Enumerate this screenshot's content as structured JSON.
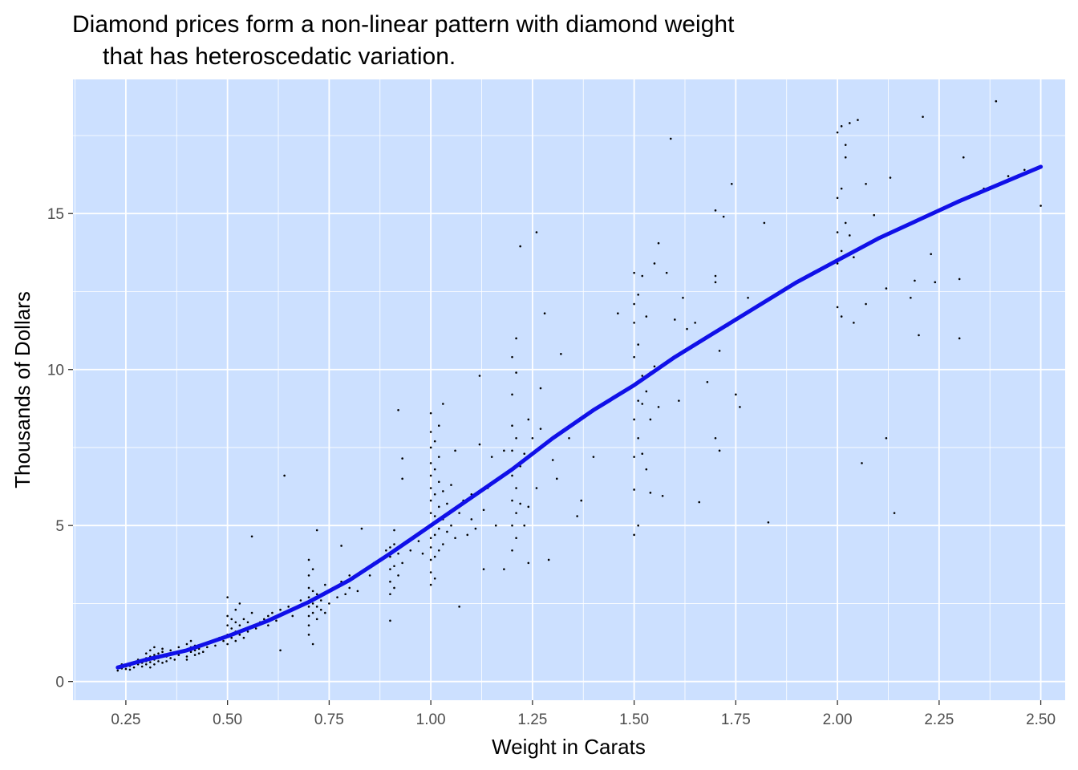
{
  "chart_data": {
    "type": "scatter",
    "title_line1": "Diamond prices form a non-linear pattern with diamond weight",
    "title_line2": "that has heteroscedatic variation.",
    "xlabel": "Weight in Carats",
    "ylabel": "Thousands of Dollars",
    "xlim": [
      0.12,
      2.56
    ],
    "ylim": [
      -0.6,
      19.3
    ],
    "x_ticks": [
      0.25,
      0.5,
      0.75,
      1.0,
      1.25,
      1.5,
      1.75,
      2.0,
      2.25,
      2.5
    ],
    "x_tick_labels": [
      "0.25",
      "0.50",
      "0.75",
      "1.00",
      "1.25",
      "1.50",
      "1.75",
      "2.00",
      "2.25",
      "2.50"
    ],
    "y_ticks": [
      0,
      5,
      10,
      15
    ],
    "y_tick_labels": [
      "0",
      "5",
      "10",
      "15"
    ],
    "grid": true,
    "panel_color": "#cce0ff",
    "grid_color": "#ffffff",
    "point_color": "#000000",
    "smooth_color": "#1010e8",
    "smooth_line": {
      "x": [
        0.23,
        0.3,
        0.4,
        0.5,
        0.6,
        0.7,
        0.8,
        0.9,
        1.0,
        1.1,
        1.2,
        1.3,
        1.4,
        1.5,
        1.6,
        1.7,
        1.8,
        1.9,
        2.0,
        2.1,
        2.2,
        2.3,
        2.4,
        2.5
      ],
      "y": [
        0.45,
        0.7,
        1.0,
        1.45,
        1.95,
        2.55,
        3.25,
        4.1,
        5.0,
        5.9,
        6.8,
        7.8,
        8.7,
        9.5,
        10.4,
        11.2,
        12.0,
        12.8,
        13.5,
        14.2,
        14.8,
        15.4,
        15.95,
        16.5
      ]
    },
    "points": [
      [
        0.23,
        0.35
      ],
      [
        0.24,
        0.42
      ],
      [
        0.24,
        0.55
      ],
      [
        0.25,
        0.4
      ],
      [
        0.25,
        0.48
      ],
      [
        0.26,
        0.5
      ],
      [
        0.26,
        0.38
      ],
      [
        0.27,
        0.62
      ],
      [
        0.27,
        0.45
      ],
      [
        0.28,
        0.55
      ],
      [
        0.28,
        0.7
      ],
      [
        0.29,
        0.6
      ],
      [
        0.29,
        0.48
      ],
      [
        0.3,
        0.65
      ],
      [
        0.3,
        0.75
      ],
      [
        0.3,
        0.55
      ],
      [
        0.3,
        0.9
      ],
      [
        0.31,
        0.8
      ],
      [
        0.31,
        0.62
      ],
      [
        0.31,
        1.0
      ],
      [
        0.31,
        0.45
      ],
      [
        0.32,
        0.7
      ],
      [
        0.32,
        0.85
      ],
      [
        0.32,
        0.55
      ],
      [
        0.32,
        1.1
      ],
      [
        0.33,
        0.65
      ],
      [
        0.33,
        0.9
      ],
      [
        0.33,
        0.75
      ],
      [
        0.34,
        0.6
      ],
      [
        0.34,
        0.95
      ],
      [
        0.34,
        1.05
      ],
      [
        0.35,
        0.8
      ],
      [
        0.35,
        0.65
      ],
      [
        0.36,
        0.75
      ],
      [
        0.36,
        1.0
      ],
      [
        0.37,
        0.7
      ],
      [
        0.37,
        0.9
      ],
      [
        0.38,
        0.85
      ],
      [
        0.38,
        1.1
      ],
      [
        0.39,
        0.95
      ],
      [
        0.4,
        0.8
      ],
      [
        0.4,
        1.0
      ],
      [
        0.4,
        1.2
      ],
      [
        0.4,
        0.7
      ],
      [
        0.41,
        0.95
      ],
      [
        0.41,
        1.1
      ],
      [
        0.41,
        1.3
      ],
      [
        0.42,
        0.85
      ],
      [
        0.42,
        1.0
      ],
      [
        0.42,
        1.15
      ],
      [
        0.43,
        0.9
      ],
      [
        0.43,
        1.05
      ],
      [
        0.44,
        0.95
      ],
      [
        0.44,
        1.2
      ],
      [
        0.45,
        1.1
      ],
      [
        0.46,
        1.25
      ],
      [
        0.47,
        1.15
      ],
      [
        0.48,
        1.4
      ],
      [
        0.49,
        1.3
      ],
      [
        0.5,
        1.2
      ],
      [
        0.5,
        1.5
      ],
      [
        0.5,
        1.8
      ],
      [
        0.5,
        2.1
      ],
      [
        0.5,
        2.7
      ],
      [
        0.51,
        1.4
      ],
      [
        0.51,
        1.7
      ],
      [
        0.51,
        2.0
      ],
      [
        0.52,
        1.3
      ],
      [
        0.52,
        1.6
      ],
      [
        0.52,
        1.9
      ],
      [
        0.52,
        2.3
      ],
      [
        0.53,
        1.5
      ],
      [
        0.53,
        1.8
      ],
      [
        0.53,
        2.5
      ],
      [
        0.54,
        1.4
      ],
      [
        0.54,
        2.0
      ],
      [
        0.55,
        1.6
      ],
      [
        0.55,
        1.9
      ],
      [
        0.56,
        2.2
      ],
      [
        0.56,
        4.65
      ],
      [
        0.57,
        1.7
      ],
      [
        0.58,
        1.9
      ],
      [
        0.59,
        2.0
      ],
      [
        0.6,
        1.8
      ],
      [
        0.6,
        2.1
      ],
      [
        0.61,
        2.2
      ],
      [
        0.62,
        1.95
      ],
      [
        0.63,
        1.0
      ],
      [
        0.63,
        2.3
      ],
      [
        0.64,
        6.6
      ],
      [
        0.65,
        2.4
      ],
      [
        0.66,
        2.1
      ],
      [
        0.68,
        2.6
      ],
      [
        0.7,
        1.5
      ],
      [
        0.7,
        1.8
      ],
      [
        0.7,
        2.1
      ],
      [
        0.7,
        2.4
      ],
      [
        0.7,
        2.7
      ],
      [
        0.7,
        3.0
      ],
      [
        0.7,
        3.4
      ],
      [
        0.7,
        3.9
      ],
      [
        0.71,
        1.2
      ],
      [
        0.71,
        2.2
      ],
      [
        0.71,
        2.5
      ],
      [
        0.71,
        2.9
      ],
      [
        0.71,
        3.6
      ],
      [
        0.72,
        2.0
      ],
      [
        0.72,
        2.4
      ],
      [
        0.72,
        2.8
      ],
      [
        0.72,
        4.85
      ],
      [
        0.73,
        2.3
      ],
      [
        0.73,
        2.6
      ],
      [
        0.74,
        2.2
      ],
      [
        0.74,
        3.1
      ],
      [
        0.75,
        2.5
      ],
      [
        0.75,
        2.9
      ],
      [
        0.76,
        3.0
      ],
      [
        0.77,
        2.7
      ],
      [
        0.78,
        4.35
      ],
      [
        0.78,
        3.2
      ],
      [
        0.79,
        2.8
      ],
      [
        0.8,
        3.0
      ],
      [
        0.8,
        3.4
      ],
      [
        0.81,
        3.3
      ],
      [
        0.82,
        2.9
      ],
      [
        0.83,
        4.9
      ],
      [
        0.83,
        3.5
      ],
      [
        0.85,
        3.4
      ],
      [
        0.86,
        3.8
      ],
      [
        0.88,
        3.9
      ],
      [
        0.89,
        4.2
      ],
      [
        0.9,
        2.8
      ],
      [
        0.9,
        3.2
      ],
      [
        0.9,
        3.6
      ],
      [
        0.9,
        4.0
      ],
      [
        0.9,
        4.3
      ],
      [
        0.9,
        1.95
      ],
      [
        0.91,
        3.0
      ],
      [
        0.91,
        3.7
      ],
      [
        0.91,
        4.4
      ],
      [
        0.91,
        4.85
      ],
      [
        0.92,
        3.4
      ],
      [
        0.92,
        4.1
      ],
      [
        0.92,
        8.7
      ],
      [
        0.93,
        7.15
      ],
      [
        0.93,
        6.5
      ],
      [
        0.93,
        3.8
      ],
      [
        0.95,
        4.2
      ],
      [
        0.97,
        4.5
      ],
      [
        0.98,
        4.1
      ],
      [
        1.0,
        3.1
      ],
      [
        1.0,
        3.5
      ],
      [
        1.0,
        3.9
      ],
      [
        1.0,
        4.3
      ],
      [
        1.0,
        4.6
      ],
      [
        1.0,
        5.0
      ],
      [
        1.0,
        5.4
      ],
      [
        1.0,
        5.8
      ],
      [
        1.0,
        6.2
      ],
      [
        1.0,
        6.6
      ],
      [
        1.0,
        7.0
      ],
      [
        1.0,
        7.5
      ],
      [
        1.0,
        8.0
      ],
      [
        1.0,
        8.6
      ],
      [
        1.01,
        3.3
      ],
      [
        1.01,
        4.0
      ],
      [
        1.01,
        4.7
      ],
      [
        1.01,
        5.3
      ],
      [
        1.01,
        6.0
      ],
      [
        1.01,
        6.8
      ],
      [
        1.01,
        7.7
      ],
      [
        1.02,
        4.2
      ],
      [
        1.02,
        4.9
      ],
      [
        1.02,
        5.6
      ],
      [
        1.02,
        6.4
      ],
      [
        1.02,
        7.2
      ],
      [
        1.02,
        8.2
      ],
      [
        1.03,
        4.4
      ],
      [
        1.03,
        5.2
      ],
      [
        1.03,
        6.1
      ],
      [
        1.03,
        8.9
      ],
      [
        1.04,
        4.8
      ],
      [
        1.04,
        5.7
      ],
      [
        1.05,
        5.0
      ],
      [
        1.05,
        6.3
      ],
      [
        1.06,
        4.6
      ],
      [
        1.06,
        7.4
      ],
      [
        1.07,
        2.4
      ],
      [
        1.07,
        5.4
      ],
      [
        1.08,
        5.8
      ],
      [
        1.09,
        4.7
      ],
      [
        1.1,
        5.2
      ],
      [
        1.1,
        6.0
      ],
      [
        1.11,
        4.9
      ],
      [
        1.12,
        7.6
      ],
      [
        1.12,
        9.8
      ],
      [
        1.13,
        3.6
      ],
      [
        1.13,
        5.5
      ],
      [
        1.14,
        6.2
      ],
      [
        1.15,
        7.2
      ],
      [
        1.16,
        5.0
      ],
      [
        1.17,
        6.5
      ],
      [
        1.18,
        3.6
      ],
      [
        1.18,
        7.4
      ],
      [
        1.2,
        4.2
      ],
      [
        1.2,
        5.0
      ],
      [
        1.2,
        5.8
      ],
      [
        1.2,
        6.6
      ],
      [
        1.2,
        7.4
      ],
      [
        1.2,
        8.2
      ],
      [
        1.2,
        9.2
      ],
      [
        1.2,
        10.4
      ],
      [
        1.21,
        4.6
      ],
      [
        1.21,
        5.4
      ],
      [
        1.21,
        6.2
      ],
      [
        1.21,
        7.8
      ],
      [
        1.21,
        9.9
      ],
      [
        1.21,
        11.0
      ],
      [
        1.22,
        13.95
      ],
      [
        1.22,
        5.7
      ],
      [
        1.22,
        6.9
      ],
      [
        1.23,
        5.0
      ],
      [
        1.23,
        7.3
      ],
      [
        1.24,
        3.8
      ],
      [
        1.24,
        5.6
      ],
      [
        1.24,
        8.4
      ],
      [
        1.25,
        7.8
      ],
      [
        1.26,
        14.4
      ],
      [
        1.26,
        6.2
      ],
      [
        1.27,
        9.4
      ],
      [
        1.27,
        8.1
      ],
      [
        1.28,
        11.8
      ],
      [
        1.29,
        3.9
      ],
      [
        1.3,
        7.1
      ],
      [
        1.31,
        6.5
      ],
      [
        1.32,
        10.5
      ],
      [
        1.34,
        7.8
      ],
      [
        1.36,
        5.3
      ],
      [
        1.37,
        5.8
      ],
      [
        1.4,
        7.2
      ],
      [
        1.46,
        11.8
      ],
      [
        1.5,
        4.7
      ],
      [
        1.5,
        6.15
      ],
      [
        1.5,
        7.2
      ],
      [
        1.5,
        8.4
      ],
      [
        1.5,
        9.5
      ],
      [
        1.5,
        10.4
      ],
      [
        1.5,
        11.5
      ],
      [
        1.5,
        12.1
      ],
      [
        1.5,
        13.1
      ],
      [
        1.51,
        5.0
      ],
      [
        1.51,
        7.8
      ],
      [
        1.51,
        9.0
      ],
      [
        1.51,
        10.8
      ],
      [
        1.51,
        12.4
      ],
      [
        1.52,
        7.3
      ],
      [
        1.52,
        8.9
      ],
      [
        1.52,
        9.8
      ],
      [
        1.52,
        13.0
      ],
      [
        1.53,
        6.8
      ],
      [
        1.53,
        9.3
      ],
      [
        1.53,
        11.7
      ],
      [
        1.54,
        8.4
      ],
      [
        1.54,
        9.9
      ],
      [
        1.54,
        6.05
      ],
      [
        1.55,
        13.4
      ],
      [
        1.55,
        10.1
      ],
      [
        1.56,
        14.05
      ],
      [
        1.56,
        8.8
      ],
      [
        1.57,
        5.95
      ],
      [
        1.58,
        13.1
      ],
      [
        1.59,
        17.4
      ],
      [
        1.6,
        11.6
      ],
      [
        1.61,
        9.0
      ],
      [
        1.62,
        12.3
      ],
      [
        1.63,
        11.3
      ],
      [
        1.65,
        11.5
      ],
      [
        1.66,
        5.75
      ],
      [
        1.68,
        9.6
      ],
      [
        1.7,
        7.8
      ],
      [
        1.7,
        12.8
      ],
      [
        1.7,
        13.0
      ],
      [
        1.7,
        15.1
      ],
      [
        1.71,
        7.4
      ],
      [
        1.71,
        10.6
      ],
      [
        1.72,
        14.9
      ],
      [
        1.73,
        11.4
      ],
      [
        1.74,
        15.95
      ],
      [
        1.75,
        9.2
      ],
      [
        1.76,
        8.8
      ],
      [
        1.78,
        12.3
      ],
      [
        1.82,
        14.7
      ],
      [
        1.83,
        5.1
      ],
      [
        2.0,
        12.0
      ],
      [
        2.0,
        13.4
      ],
      [
        2.0,
        14.4
      ],
      [
        2.0,
        15.5
      ],
      [
        2.0,
        17.6
      ],
      [
        2.01,
        11.7
      ],
      [
        2.01,
        13.8
      ],
      [
        2.01,
        15.8
      ],
      [
        2.01,
        17.8
      ],
      [
        2.02,
        14.7
      ],
      [
        2.02,
        16.8
      ],
      [
        2.02,
        17.2
      ],
      [
        2.03,
        14.3
      ],
      [
        2.03,
        17.9
      ],
      [
        2.04,
        11.5
      ],
      [
        2.04,
        13.6
      ],
      [
        2.05,
        18.0
      ],
      [
        2.06,
        7.0
      ],
      [
        2.07,
        12.1
      ],
      [
        2.07,
        15.95
      ],
      [
        2.09,
        14.95
      ],
      [
        2.12,
        7.8
      ],
      [
        2.12,
        12.6
      ],
      [
        2.13,
        16.15
      ],
      [
        2.14,
        5.4
      ],
      [
        2.18,
        12.3
      ],
      [
        2.19,
        12.85
      ],
      [
        2.2,
        11.1
      ],
      [
        2.21,
        18.1
      ],
      [
        2.23,
        13.7
      ],
      [
        2.24,
        12.8
      ],
      [
        2.3,
        11.0
      ],
      [
        2.3,
        12.9
      ],
      [
        2.31,
        16.8
      ],
      [
        2.36,
        15.8
      ],
      [
        2.39,
        18.6
      ],
      [
        2.42,
        16.2
      ],
      [
        2.46,
        16.4
      ],
      [
        2.5,
        15.25
      ]
    ]
  }
}
